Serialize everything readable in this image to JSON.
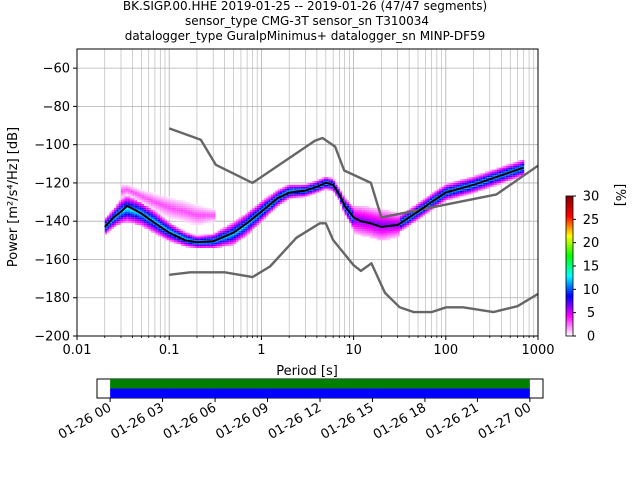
{
  "chart_data": {
    "type": "heatmap",
    "title_lines": [
      "BK.SIGP.00.HHE   2019-01-25 -- 2019-01-26  (47/47 segments)",
      "sensor_type CMG-3T sensor_sn T310034",
      "datalogger_type GuralpMinimus+ datalogger_sn MINP-DF59"
    ],
    "xlabel": "Period [s]",
    "ylabel": "Power [m²/s⁴/Hz] [dB]",
    "x_scale": "log",
    "xlim": [
      0.01,
      1000
    ],
    "ylim": [
      -200,
      -50
    ],
    "x_ticks": [
      {
        "value": 0.01,
        "label": "0.01"
      },
      {
        "value": 0.1,
        "label": "0.1"
      },
      {
        "value": 1,
        "label": "1"
      },
      {
        "value": 10,
        "label": "10"
      },
      {
        "value": 100,
        "label": "100"
      },
      {
        "value": 1000,
        "label": "1000"
      }
    ],
    "y_ticks": [
      {
        "value": -60,
        "label": "−60"
      },
      {
        "value": -80,
        "label": "−80"
      },
      {
        "value": -100,
        "label": "−100"
      },
      {
        "value": -120,
        "label": "−120"
      },
      {
        "value": -140,
        "label": "−140"
      },
      {
        "value": -160,
        "label": "−160"
      },
      {
        "value": -180,
        "label": "−180"
      },
      {
        "value": -200,
        "label": "−200"
      }
    ],
    "grid": true,
    "colorbar": {
      "label": "[%]",
      "range": [
        0,
        30
      ],
      "ticks": [
        {
          "value": 0,
          "label": "0"
        },
        {
          "value": 5,
          "label": "5"
        },
        {
          "value": 10,
          "label": "10"
        },
        {
          "value": 15,
          "label": "15"
        },
        {
          "value": 20,
          "label": "20"
        },
        {
          "value": 25,
          "label": "25"
        },
        {
          "value": 30,
          "label": "30"
        }
      ],
      "colors": [
        "#ffffff",
        "#ff00ff",
        "#0000ff",
        "#00ffff",
        "#00ff00",
        "#ffff00",
        "#ff0000",
        "#800000"
      ]
    },
    "series": [
      {
        "role": "noise-model-high",
        "color": "#666666",
        "x": [
          0.1,
          0.22,
          0.32,
          0.8,
          3.8,
          4.6,
          6.3,
          7.9,
          15.4,
          20,
          354.8,
          1000
        ],
        "y": [
          -91.5,
          -97.4,
          -110.5,
          -120,
          -98,
          -96.5,
          -101,
          -113.5,
          -120,
          -138,
          -126,
          -111
        ]
      },
      {
        "role": "noise-model-low",
        "color": "#666666",
        "x": [
          0.1,
          0.17,
          0.4,
          0.8,
          1.24,
          2.4,
          4.3,
          5.0,
          6.0,
          10.0,
          12.0,
          15.6,
          21.9,
          31.6,
          45.0,
          70.0,
          101.0,
          154.0,
          328.0,
          600.0,
          1000.0
        ],
        "y": [
          -168,
          -166.7,
          -166.7,
          -169.2,
          -163.7,
          -148.6,
          -141.1,
          -141.1,
          -149.8,
          -163,
          -166,
          -162,
          -177.5,
          -185,
          -187.5,
          -187.5,
          -185,
          -185,
          -187.5,
          -184.4,
          -178
        ]
      },
      {
        "role": "mean",
        "color": "#000000",
        "x": [
          0.02,
          0.025,
          0.03,
          0.035,
          0.05,
          0.07,
          0.1,
          0.15,
          0.2,
          0.3,
          0.5,
          0.7,
          1.0,
          1.5,
          2.0,
          3.0,
          4.0,
          5.0,
          6.0,
          7.0,
          8.0,
          10.0,
          12.0,
          15.0,
          20.0,
          30.0,
          50.0,
          70.0,
          100.0,
          200.0,
          400.0,
          700.0
        ],
        "y": [
          -143,
          -138,
          -135,
          -132,
          -136,
          -141,
          -146,
          -150,
          -151,
          -150.5,
          -146,
          -141,
          -135,
          -128,
          -125,
          -124,
          -122,
          -120,
          -121,
          -126,
          -132,
          -138,
          -140,
          -141,
          -143,
          -142,
          -135,
          -130,
          -125,
          -121,
          -116,
          -112
        ]
      }
    ],
    "density_bands": [
      {
        "x": [
          0.02,
          0.025,
          0.03,
          0.035,
          0.05,
          0.07,
          0.1,
          0.15,
          0.2,
          0.3,
          0.5,
          0.7,
          1.0,
          1.5,
          2.0,
          3.0,
          4.0,
          5.0,
          6.0,
          7.0,
          8.0,
          10.0,
          12.0,
          15.0,
          20.0,
          30.0,
          50.0,
          70.0,
          100.0,
          200.0,
          400.0,
          700.0
        ],
        "y_low": [
          -147,
          -143,
          -141,
          -140,
          -142,
          -146,
          -150,
          -153,
          -154,
          -154,
          -152,
          -147,
          -140,
          -132,
          -128,
          -127,
          -125,
          -123,
          -124,
          -129,
          -136,
          -144,
          -147,
          -148,
          -149,
          -146,
          -139,
          -134,
          -129,
          -125,
          -120,
          -116
        ],
        "y_high": [
          -139,
          -134,
          -129,
          -127,
          -130,
          -135,
          -141,
          -146,
          -148,
          -147,
          -141,
          -136,
          -130,
          -124,
          -121,
          -121,
          -119,
          -117,
          -118,
          -123,
          -128,
          -133,
          -135,
          -136,
          -138,
          -138,
          -131,
          -126,
          -121,
          -117,
          -112,
          -108
        ],
        "level": 8
      },
      {
        "x": [
          0.03,
          0.035,
          0.05,
          0.07,
          0.1,
          0.15,
          0.2,
          0.3
        ],
        "y_low": [
          -128,
          -126,
          -130,
          -134,
          -138,
          -140,
          -142,
          -140
        ],
        "y_high": [
          -121,
          -121,
          -124,
          -126,
          -128,
          -130,
          -132,
          -134
        ],
        "level": 2
      },
      {
        "x": [
          10.0,
          12.0,
          15.0,
          20.0,
          30.0
        ],
        "y_low": [
          -146,
          -147,
          -148,
          -150,
          -148
        ],
        "y_high": [
          -132,
          -132,
          -133,
          -134,
          -136
        ],
        "level": 4
      }
    ]
  },
  "time_coverage": {
    "ticks": [
      {
        "label": "01-26 00"
      },
      {
        "label": "01-26 03"
      },
      {
        "label": "01-26 06"
      },
      {
        "label": "01-26 09"
      },
      {
        "label": "01-26 12"
      },
      {
        "label": "01-26 15"
      },
      {
        "label": "01-26 18"
      },
      {
        "label": "01-26 21"
      },
      {
        "label": "01-27 00"
      }
    ],
    "range_hours": [
      -0.75,
      24.75
    ],
    "bars": [
      {
        "color": "#008000",
        "start_hour": 0,
        "end_hour": 24
      },
      {
        "color": "#0000ff",
        "start_hour": 0,
        "end_hour": 24
      }
    ]
  }
}
